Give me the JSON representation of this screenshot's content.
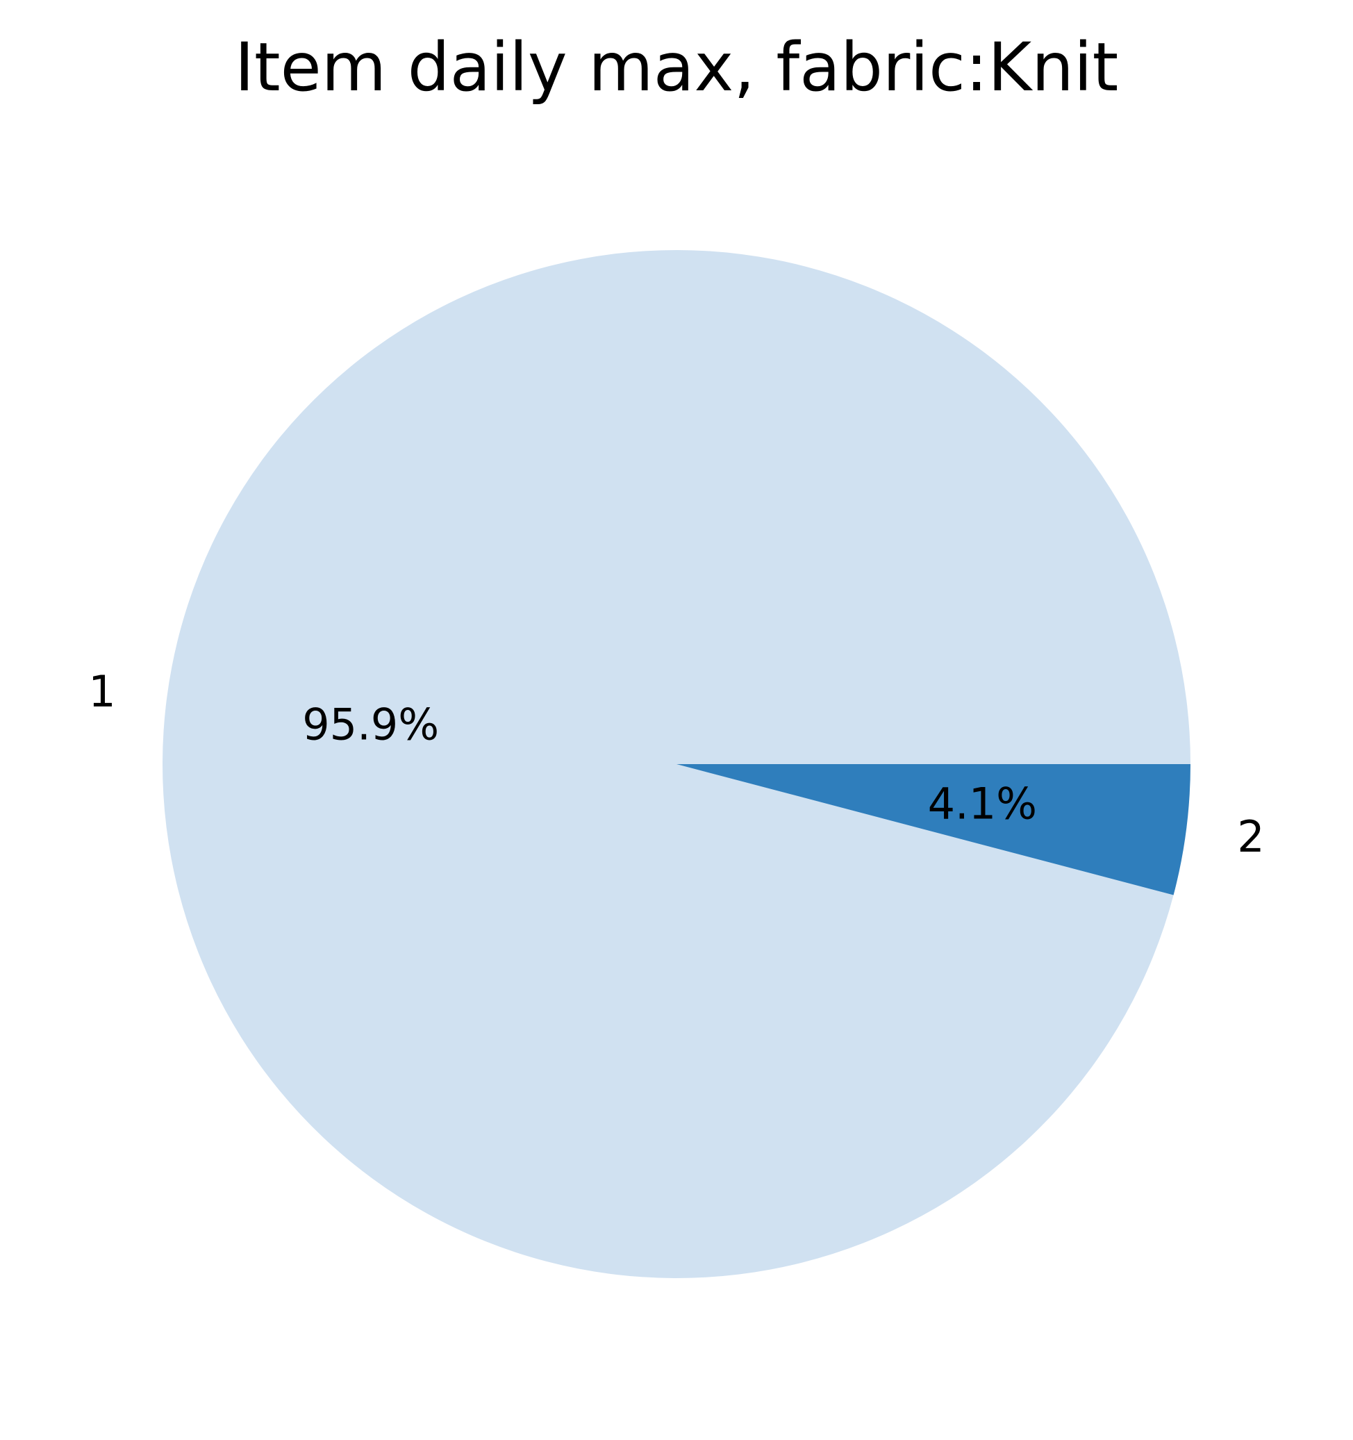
{
  "chart_data": {
    "type": "pie",
    "title": "Item daily max, fabric:Knit",
    "slices": [
      {
        "label": "1",
        "value": 95.9,
        "pct_label": "95.9%",
        "color": "#d0e1f1"
      },
      {
        "label": "2",
        "value": 4.1,
        "pct_label": "4.1%",
        "color": "#2f7ebc"
      }
    ],
    "legend": "none",
    "start_angle_deg": 0,
    "direction": "counterclockwise"
  }
}
